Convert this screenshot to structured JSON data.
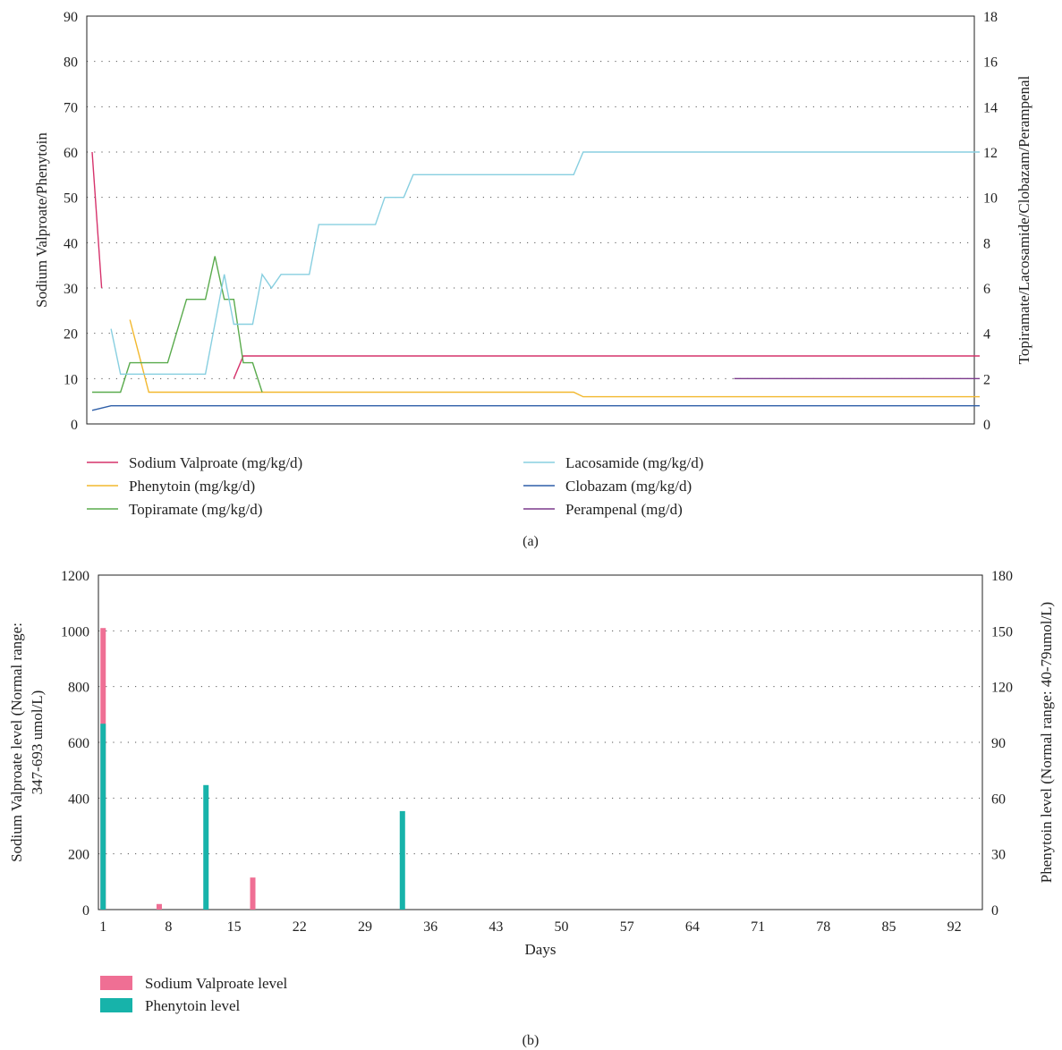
{
  "chart_data": [
    {
      "panel_label": "(a)",
      "type": "line",
      "ylabel_left": "Sodium Valproate/Phenytoin",
      "ylabel_right": "Topiramate/Lacosamide/Clobazam/Perampenal",
      "ylim_left": [
        0,
        90
      ],
      "ylim_right": [
        0,
        18
      ],
      "yticks_left": [
        0,
        10,
        20,
        30,
        40,
        50,
        60,
        70,
        80,
        90
      ],
      "yticks_right": [
        0,
        2,
        4,
        6,
        8,
        10,
        12,
        14,
        16,
        18
      ],
      "xlim": [
        1,
        95
      ],
      "grid": true,
      "legend_position": "bottom",
      "series": [
        {
          "name": "Sodium Valproate (mg/kg/d)",
          "axis": "left",
          "color": "#d6336c",
          "points": [
            [
              1,
              60
            ],
            [
              2,
              30
            ],
            [
              null,
              null
            ],
            [
              16,
              10
            ],
            [
              17,
              15
            ],
            [
              95,
              15
            ]
          ]
        },
        {
          "name": "Phenytoin (mg/kg/d)",
          "axis": "left",
          "color": "#f2b82e",
          "points": [
            [
              5,
              23
            ],
            [
              7,
              7
            ],
            [
              52,
              7
            ],
            [
              53,
              6
            ],
            [
              95,
              6
            ]
          ]
        },
        {
          "name": "Topiramate (mg/kg/d)",
          "axis": "right",
          "color": "#5aab4d",
          "points": [
            [
              1,
              1.4
            ],
            [
              4,
              1.4
            ],
            [
              5,
              2.7
            ],
            [
              9,
              2.7
            ],
            [
              11,
              5.5
            ],
            [
              13,
              5.5
            ],
            [
              14,
              7.4
            ],
            [
              15,
              5.5
            ],
            [
              16,
              5.5
            ],
            [
              17,
              2.7
            ],
            [
              18,
              2.7
            ],
            [
              19,
              1.4
            ]
          ]
        },
        {
          "name": "Lacosamide (mg/kg/d)",
          "axis": "right",
          "color": "#88cfe0",
          "points": [
            [
              3,
              4.2
            ],
            [
              4,
              2.2
            ],
            [
              13,
              2.2
            ],
            [
              15,
              6.6
            ],
            [
              16,
              4.4
            ],
            [
              18,
              4.4
            ],
            [
              19,
              6.6
            ],
            [
              20,
              6
            ],
            [
              21,
              6.6
            ],
            [
              24,
              6.6
            ],
            [
              25,
              8.8
            ],
            [
              31,
              8.8
            ],
            [
              32,
              10
            ],
            [
              34,
              10
            ],
            [
              35,
              11
            ],
            [
              52,
              11
            ],
            [
              53,
              12
            ],
            [
              95,
              12
            ]
          ]
        },
        {
          "name": "Clobazam (mg/kg/d)",
          "axis": "right",
          "color": "#2f5fa8",
          "points": [
            [
              1,
              0.6
            ],
            [
              3,
              0.8
            ],
            [
              95,
              0.8
            ]
          ]
        },
        {
          "name": "Perampenal (mg/d)",
          "axis": "right",
          "color": "#7b3a8c",
          "points": [
            [
              69,
              2
            ],
            [
              95,
              2
            ]
          ]
        }
      ]
    },
    {
      "panel_label": "(b)",
      "type": "bar",
      "xlabel": "Days",
      "xticks": [
        1,
        8,
        15,
        22,
        29,
        36,
        43,
        50,
        57,
        64,
        71,
        78,
        85,
        92
      ],
      "xlim": [
        0.5,
        95
      ],
      "ylabel_left": "Sodium Valproate level (Normal range: 347-693 umol/L)",
      "ylabel_right": "Phenytoin level (Normal range: 40-79umol/L)",
      "ylim_left": [
        0,
        1200
      ],
      "ylim_right": [
        0,
        180
      ],
      "yticks_left": [
        0,
        200,
        400,
        600,
        800,
        1000,
        1200
      ],
      "yticks_right": [
        0,
        30,
        60,
        90,
        120,
        150,
        180
      ],
      "grid": true,
      "legend_position": "bottom-left",
      "series": [
        {
          "name": "Sodium Valproate level",
          "axis": "left",
          "color": "#ef6f94",
          "points": [
            [
              1,
              1010
            ],
            [
              7,
              20
            ],
            [
              17,
              115
            ]
          ]
        },
        {
          "name": "Phenytoin level",
          "axis": "right",
          "color": "#17b3aa",
          "points": [
            [
              1,
              100
            ],
            [
              12,
              67
            ],
            [
              33,
              53
            ]
          ]
        }
      ]
    }
  ]
}
